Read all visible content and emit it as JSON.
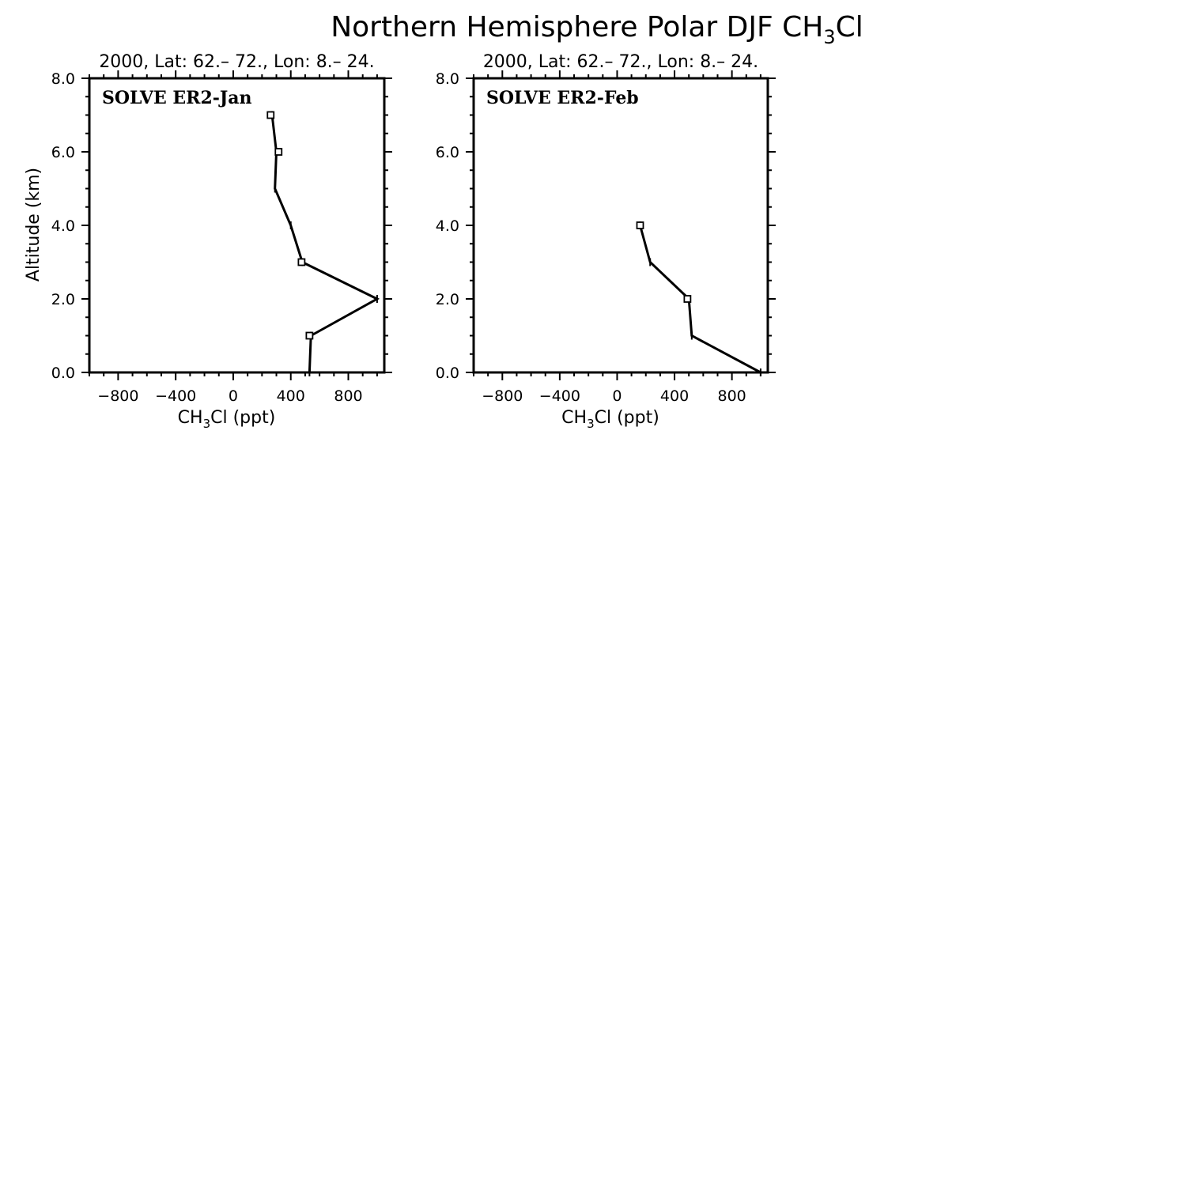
{
  "figure": {
    "title": "Northern Hemisphere Polar DJF CH",
    "title_sub": "3",
    "title_suffix": "Cl"
  },
  "chart_data": [
    {
      "type": "line",
      "panel_label": "SOLVE ER2-Jan",
      "subtitle": "2000, Lat: 62.– 72., Lon: 8.– 24.",
      "xlabel_main": "CH",
      "xlabel_sub": "3",
      "xlabel_suffix": "Cl (ppt)",
      "ylabel": "Altitude (km)",
      "xlim": [
        -1000,
        1050
      ],
      "ylim": [
        0,
        8
      ],
      "xticks": [
        -800,
        -400,
        0,
        400,
        800
      ],
      "xtick_labels": [
        "-800",
        "-400",
        "0",
        "400",
        "800"
      ],
      "yticks": [
        0,
        2,
        4,
        6,
        8
      ],
      "ytick_labels": [
        "0.0",
        "2.0",
        "4.0",
        "6.0",
        "8.0"
      ],
      "series": [
        {
          "x": [
            530,
            540,
            1000,
            480,
            400,
            290,
            300,
            270
          ],
          "y": [
            0,
            1,
            2,
            3,
            4,
            5,
            6,
            7
          ],
          "squares": [
            {
              "x": 530,
              "y": 1
            },
            {
              "x": 475,
              "y": 3
            },
            {
              "x": 315,
              "y": 6
            },
            {
              "x": 260,
              "y": 7
            }
          ]
        }
      ]
    },
    {
      "type": "line",
      "panel_label": "SOLVE ER2-Feb",
      "subtitle": "2000, Lat: 62.– 72., Lon: 8.– 24.",
      "xlabel_main": "CH",
      "xlabel_sub": "3",
      "xlabel_suffix": "Cl (ppt)",
      "ylabel": "",
      "xlim": [
        -1000,
        1050
      ],
      "ylim": [
        0,
        8
      ],
      "xticks": [
        -800,
        -400,
        0,
        400,
        800
      ],
      "xtick_labels": [
        "-800",
        "-400",
        "0",
        "400",
        "800"
      ],
      "yticks": [
        0,
        2,
        4,
        6,
        8
      ],
      "ytick_labels": [
        "0.0",
        "2.0",
        "4.0",
        "6.0",
        "8.0"
      ],
      "series": [
        {
          "x": [
            1000,
            520,
            500,
            230,
            160
          ],
          "y": [
            0,
            1,
            2,
            3,
            4
          ],
          "squares": [
            {
              "x": 490,
              "y": 2
            },
            {
              "x": 160,
              "y": 4
            }
          ]
        }
      ]
    }
  ]
}
